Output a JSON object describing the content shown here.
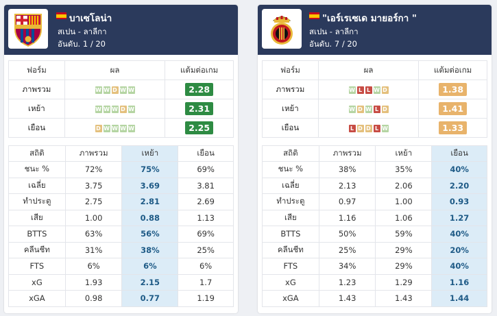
{
  "colors": {
    "header_bg": "#2b3a5c",
    "highlight_col": "#dcecf7",
    "form_win": "#b5d5a3",
    "form_draw": "#e4c07d",
    "form_loss": "#c74c44",
    "pts_good": "#2e8b43",
    "pts_mid": "#e8b36b"
  },
  "teams": [
    {
      "name": "บาเซโลน่า",
      "league": "สเปน - ลาลีกา",
      "rank": "อันดับ. 1 / 20",
      "flag_icon": "spain-flag-icon",
      "logo_icon": "fc-barcelona-crest-icon",
      "form_headers": [
        "ฟอร์ม",
        "ผล",
        "แต้มต่อเกม"
      ],
      "form_rows": [
        {
          "label": "ภาพรวม",
          "results": [
            "W",
            "W",
            "D",
            "W",
            "W"
          ],
          "ppg": "2.28",
          "ppg_level": "good"
        },
        {
          "label": "เหย้า",
          "results": [
            "W",
            "W",
            "W",
            "D",
            "W"
          ],
          "ppg": "2.31",
          "ppg_level": "good"
        },
        {
          "label": "เยือน",
          "results": [
            "D",
            "W",
            "W",
            "W",
            "W"
          ],
          "ppg": "2.25",
          "ppg_level": "good"
        }
      ],
      "stats_headers": [
        "สถิติ",
        "ภาพรวม",
        "เหย้า",
        "เยือน"
      ],
      "highlight_col": 2,
      "stats_rows": [
        {
          "label": "ชนะ %",
          "values": [
            "72%",
            "75%",
            "69%"
          ]
        },
        {
          "label": "เฉลี่ย",
          "values": [
            "3.75",
            "3.69",
            "3.81"
          ]
        },
        {
          "label": "ทำประตู",
          "values": [
            "2.75",
            "2.81",
            "2.69"
          ]
        },
        {
          "label": "เสีย",
          "values": [
            "1.00",
            "0.88",
            "1.13"
          ]
        },
        {
          "label": "BTTS",
          "values": [
            "63%",
            "56%",
            "69%"
          ]
        },
        {
          "label": "คลีนชีท",
          "values": [
            "31%",
            "38%",
            "25%"
          ]
        },
        {
          "label": "FTS",
          "values": [
            "6%",
            "6%",
            "6%"
          ]
        },
        {
          "label": "xG",
          "values": [
            "1.93",
            "2.15",
            "1.7"
          ]
        },
        {
          "label": "xGA",
          "values": [
            "0.98",
            "0.77",
            "1.19"
          ]
        }
      ]
    },
    {
      "name": "\"เอร์เรเซเด มายอร์กา \"",
      "league": "สเปน - ลาลีกา",
      "rank": "อันดับ. 7 / 20",
      "flag_icon": "spain-flag-icon",
      "logo_icon": "rcd-mallorca-crest-icon",
      "form_headers": [
        "ฟอร์ม",
        "ผล",
        "แต้มต่อเกม"
      ],
      "form_rows": [
        {
          "label": "ภาพรวม",
          "results": [
            "W",
            "L",
            "L",
            "W",
            "D"
          ],
          "ppg": "1.38",
          "ppg_level": "mid"
        },
        {
          "label": "เหย้า",
          "results": [
            "W",
            "D",
            "W",
            "L",
            "D"
          ],
          "ppg": "1.41",
          "ppg_level": "mid"
        },
        {
          "label": "เยือน",
          "results": [
            "L",
            "D",
            "D",
            "L",
            "W"
          ],
          "ppg": "1.33",
          "ppg_level": "mid"
        }
      ],
      "stats_headers": [
        "สถิติ",
        "ภาพรวม",
        "เหย้า",
        "เยือน"
      ],
      "highlight_col": 3,
      "stats_rows": [
        {
          "label": "ชนะ %",
          "values": [
            "38%",
            "35%",
            "40%"
          ]
        },
        {
          "label": "เฉลี่ย",
          "values": [
            "2.13",
            "2.06",
            "2.20"
          ]
        },
        {
          "label": "ทำประตู",
          "values": [
            "0.97",
            "1.00",
            "0.93"
          ]
        },
        {
          "label": "เสีย",
          "values": [
            "1.16",
            "1.06",
            "1.27"
          ]
        },
        {
          "label": "BTTS",
          "values": [
            "50%",
            "59%",
            "40%"
          ]
        },
        {
          "label": "คลีนชีท",
          "values": [
            "25%",
            "29%",
            "20%"
          ]
        },
        {
          "label": "FTS",
          "values": [
            "34%",
            "29%",
            "40%"
          ]
        },
        {
          "label": "xG",
          "values": [
            "1.23",
            "1.29",
            "1.16"
          ]
        },
        {
          "label": "xGA",
          "values": [
            "1.43",
            "1.43",
            "1.44"
          ]
        }
      ]
    }
  ]
}
